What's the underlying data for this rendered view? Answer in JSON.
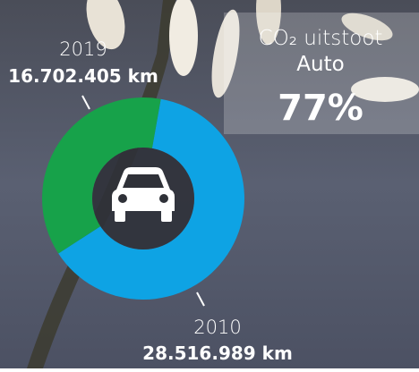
{
  "chart_data": {
    "type": "donut",
    "title": "CO₂ uitstoot",
    "subtitle": "Auto",
    "annotation": "77%",
    "categories": [
      "2019",
      "2010"
    ],
    "values": [
      16702405,
      28516989
    ],
    "value_labels": [
      "16.702.405 km",
      "28.516.989 km"
    ],
    "colors": [
      "#17a24a",
      "#0ea3e4"
    ]
  }
}
